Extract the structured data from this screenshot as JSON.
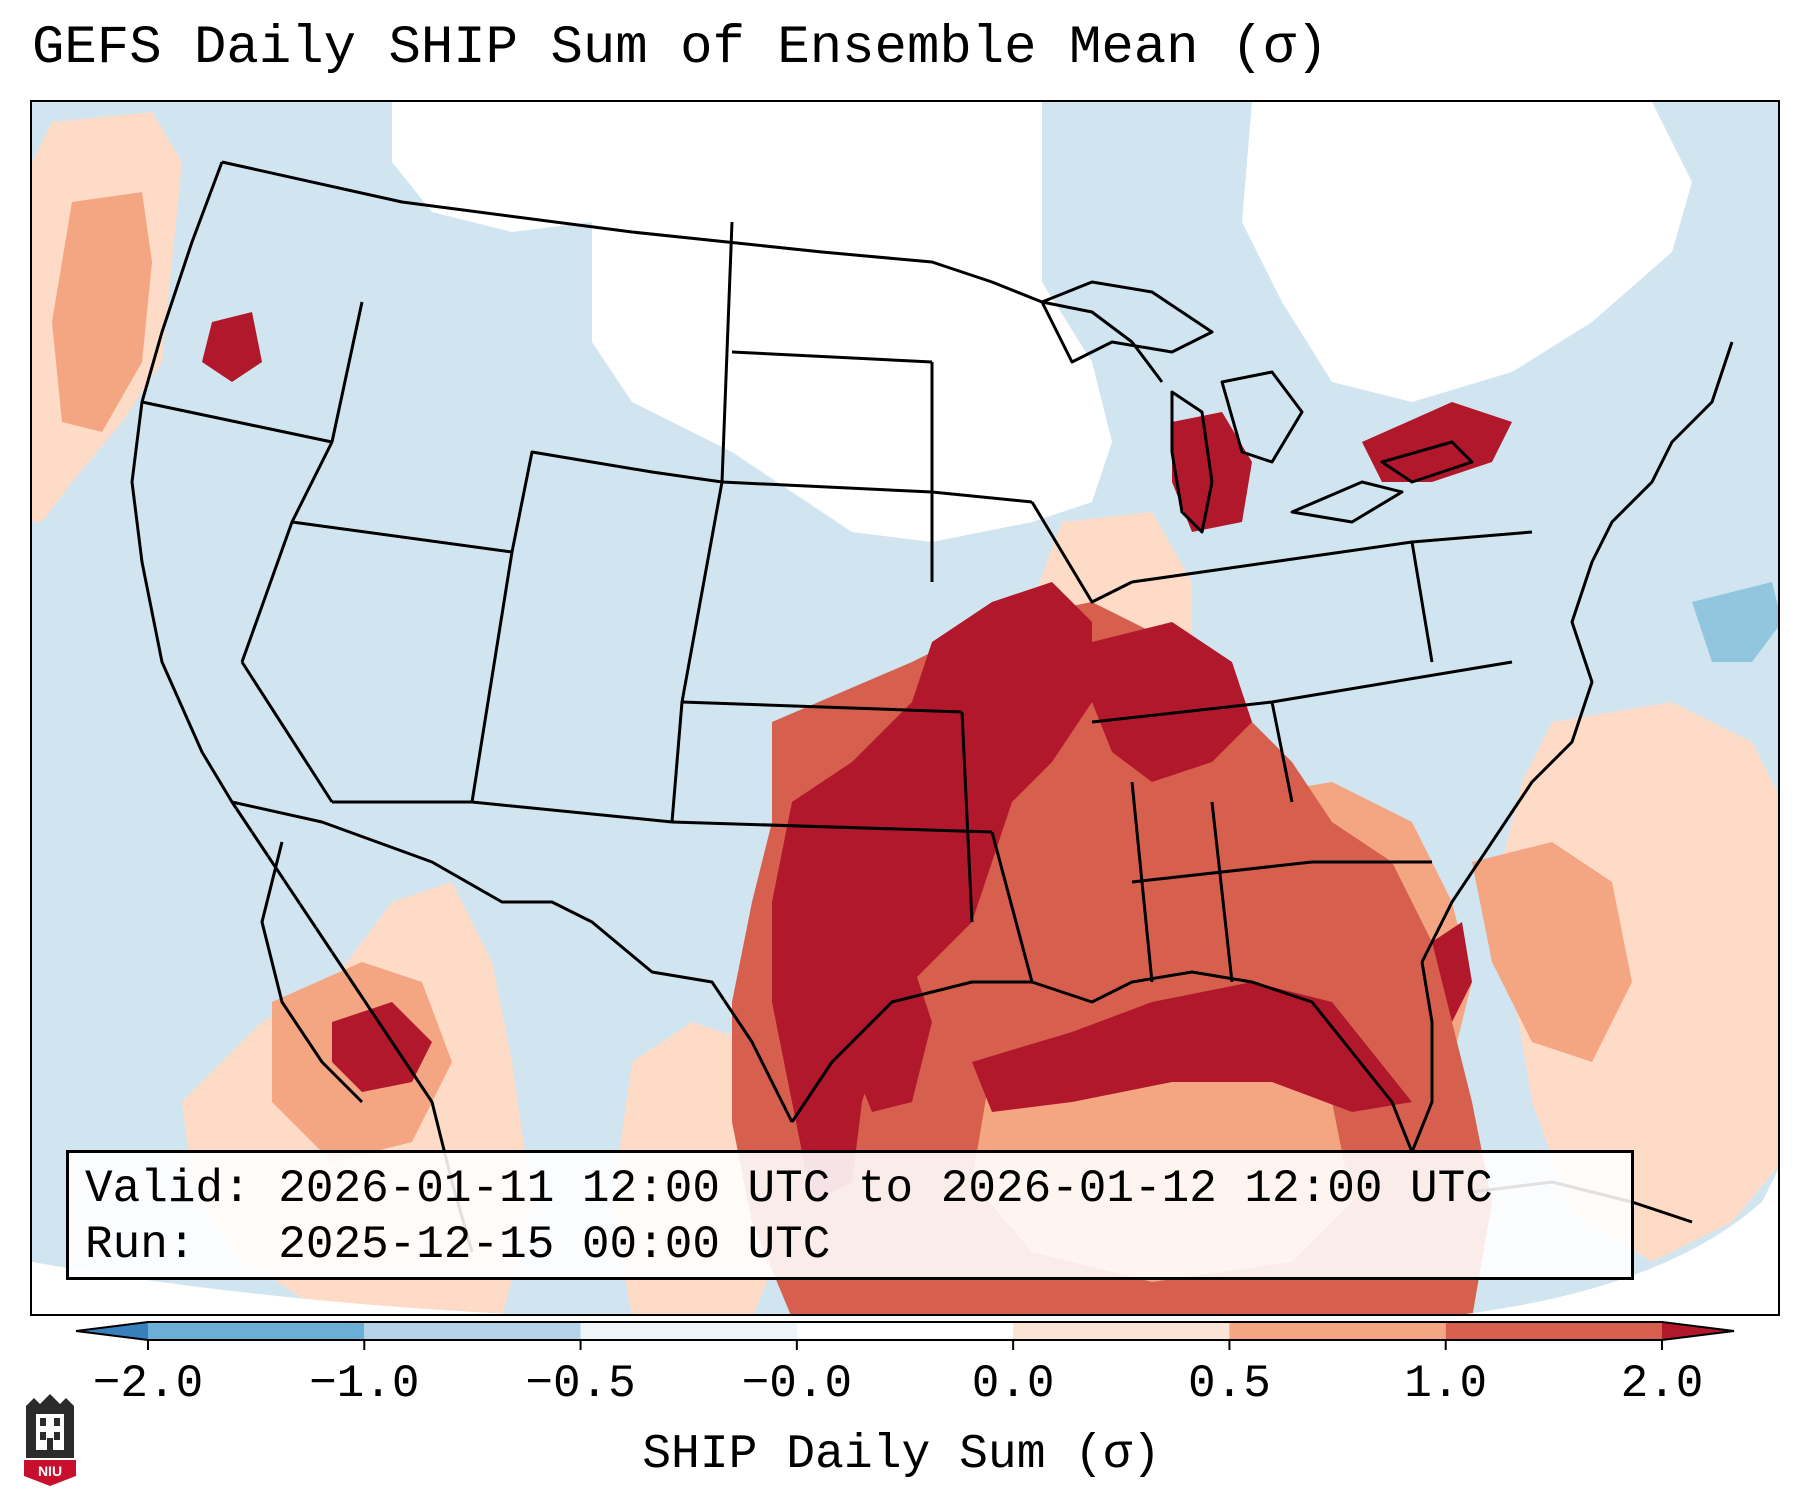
{
  "title": "GEFS Daily SHIP Sum of Ensemble Mean (σ)",
  "info": {
    "valid_label": "Valid:",
    "valid_value": "2026-01-11 12:00 UTC to 2026-01-12 12:00 UTC",
    "run_label": "Run:",
    "run_value": "2025-12-15 00:00 UTC"
  },
  "colorbar": {
    "label": "SHIP Daily Sum (σ)",
    "ticks": [
      "−2.0",
      "−1.0",
      "−0.5",
      "−0.0",
      "0.0",
      "0.5",
      "1.0",
      "2.0"
    ],
    "colors": [
      "#3a7fbd",
      "#8fbfde",
      "#cfe3f0",
      "#f7f7f7",
      "#fbd6c3",
      "#f0a083",
      "#d6604d",
      "#b2182b"
    ]
  },
  "logo": {
    "text": "NIU",
    "colors": {
      "shield": "#2b2b2b",
      "banner": "#c8102e"
    }
  },
  "map": {
    "colors": {
      "neutral": "#ffffff",
      "slight_negative": "#d1e5f0",
      "negative": "#92c5de",
      "slight_positive": "#fddbc7",
      "positive": "#f4a582",
      "high": "#d6604d",
      "very_high": "#b2182b",
      "ocean_edge": "#ffffff"
    }
  }
}
